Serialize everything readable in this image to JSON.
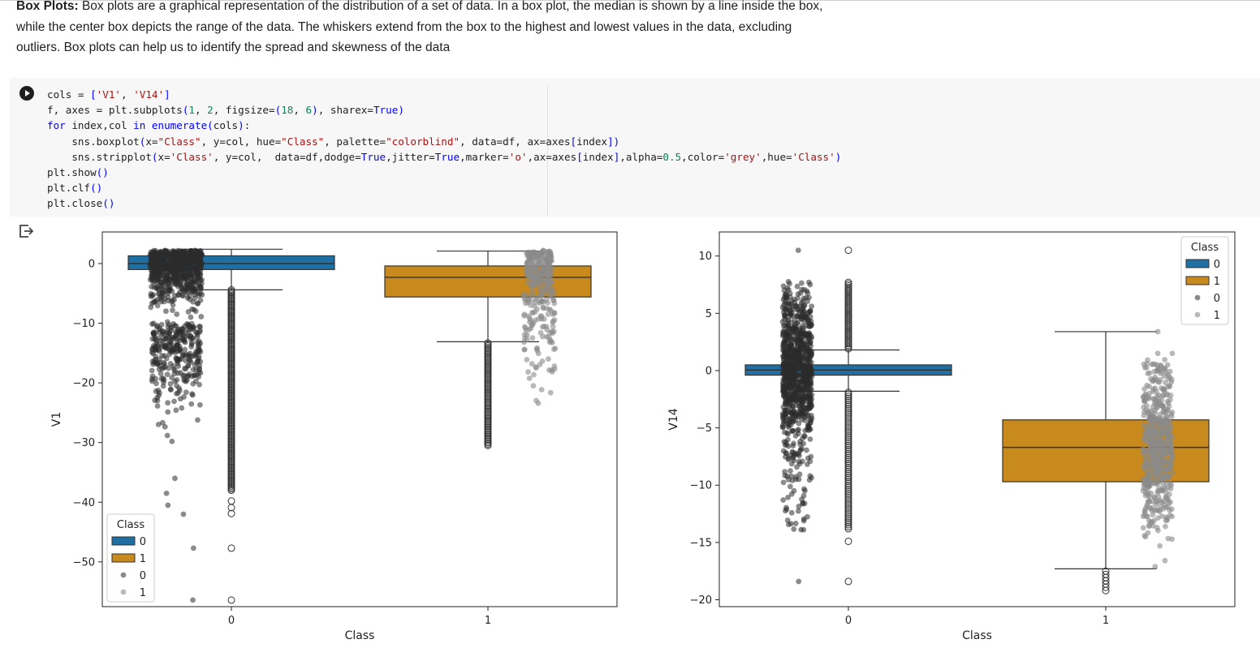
{
  "text_cell": {
    "title": "Box Plots:",
    "body": " Box plots are a graphical representation of the distribution of a set of data. In a box plot, the median is shown by a line inside the box, while the center box depicts the range of the data. The whiskers extend from the box to the highest and lowest values in the data, excluding outliers. Box plots can help us to identify the spread and skewness of the data"
  },
  "code_cell": {
    "run_icon": "play-circle-icon",
    "output_icon": "output-redirect-icon",
    "lines": [
      "cols = ['V1', 'V14']",
      "f, axes = plt.subplots(1, 2, figsize=(18, 6), sharex=True)",
      "for index,col in enumerate(cols):",
      "    sns.boxplot(x=\"Class\", y=col, hue=\"Class\", palette=\"colorblind\", data=df, ax=axes[index])",
      "    sns.stripplot(x='Class', y=col,  data=df,dodge=True,jitter=True,marker='o',ax=axes[index],alpha=0.5,color='grey',hue='Class')",
      "plt.show()",
      "plt.clf()",
      "plt.close()"
    ]
  },
  "colors": {
    "class0": "#1f6fa3",
    "class1": "#c88a1d",
    "strip0": "#2b2b2b",
    "strip1": "#8a8a8a"
  },
  "chart_data": [
    {
      "type": "box",
      "xlabel": "Class",
      "ylabel": "V1",
      "categories": [
        "0",
        "1"
      ],
      "yticks": [
        0,
        -10,
        -20,
        -30,
        -40,
        -50
      ],
      "ylim": [
        -57.5,
        5.3
      ],
      "legend": {
        "title": "Class",
        "placement": "lower-left",
        "entries": [
          "0",
          "1",
          "0",
          "1"
        ]
      },
      "boxes": [
        {
          "class": "0",
          "q1": -1.0,
          "median": 0.0,
          "q3": 1.3,
          "whisker_low": -4.4,
          "whisker_high": 2.4,
          "outlier_low": -56.4
        },
        {
          "class": "1",
          "q1": -5.6,
          "median": -2.3,
          "q3": -0.4,
          "whisker_low": -13.1,
          "whisker_high": 2.1,
          "outlier_low": -30.5
        }
      ]
    },
    {
      "type": "box",
      "xlabel": "Class",
      "ylabel": "V14",
      "categories": [
        "0",
        "1"
      ],
      "yticks": [
        10,
        5,
        0,
        -5,
        -10,
        -15,
        -20
      ],
      "ylim": [
        -20.6,
        12.1
      ],
      "legend": {
        "title": "Class",
        "placement": "top-right",
        "entries": [
          "0",
          "1",
          "0",
          "1"
        ]
      },
      "boxes": [
        {
          "class": "0",
          "q1": -0.4,
          "median": 0.05,
          "q3": 0.5,
          "whisker_low": -1.8,
          "whisker_high": 1.8,
          "outlier_low": -18.4,
          "outlier_high": 10.5
        },
        {
          "class": "1",
          "q1": -9.7,
          "median": -6.7,
          "q3": -4.3,
          "whisker_low": -17.3,
          "whisker_high": 3.4,
          "outlier_low": -19.2
        }
      ]
    }
  ]
}
